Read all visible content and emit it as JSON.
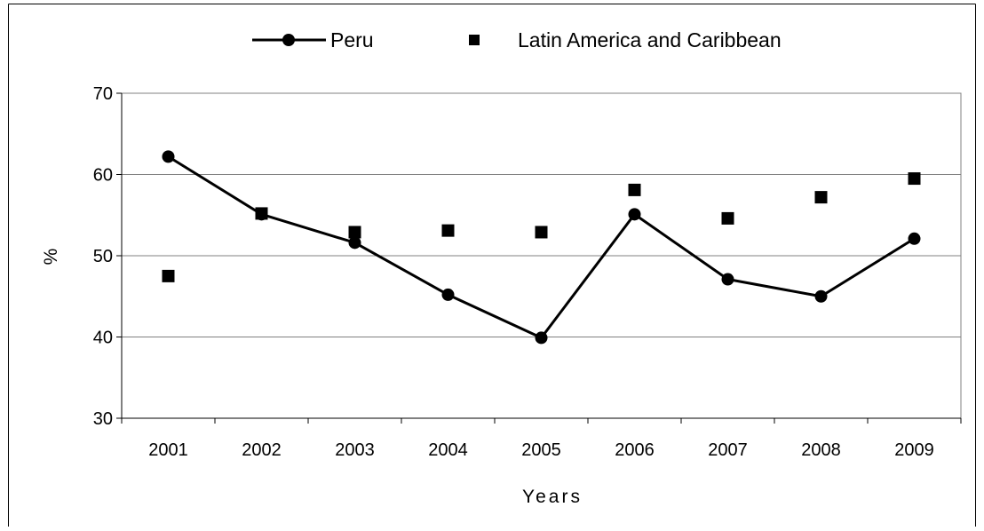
{
  "chart_data": {
    "type": "line",
    "title": "",
    "xlabel": "Years",
    "ylabel": "%",
    "ylim": [
      30,
      70
    ],
    "yticks": [
      30,
      40,
      50,
      60,
      70
    ],
    "grid": true,
    "legend_position": "top",
    "categories": [
      "2001",
      "2002",
      "2003",
      "2004",
      "2005",
      "2006",
      "2007",
      "2008",
      "2009"
    ],
    "series": [
      {
        "name": "Peru",
        "style": "line-with-circle-markers",
        "color": "#000000",
        "values": [
          62.2,
          55.1,
          51.6,
          45.2,
          39.9,
          55.1,
          47.1,
          45.0,
          52.1
        ]
      },
      {
        "name": "Latin America and Caribbean",
        "style": "square-markers-only",
        "color": "#000000",
        "values": [
          47.5,
          55.2,
          52.9,
          53.1,
          52.9,
          58.1,
          54.6,
          57.2,
          59.5
        ]
      }
    ]
  }
}
